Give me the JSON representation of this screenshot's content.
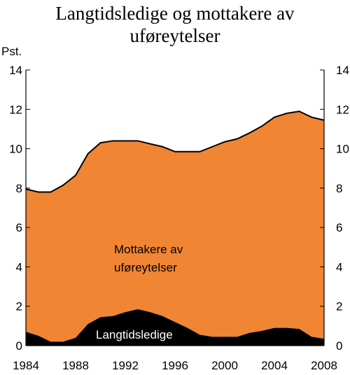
{
  "chart_data": {
    "type": "area",
    "stacked": true,
    "title_lines": [
      "Langtidsledige og mottakere av",
      "uføreytelser"
    ],
    "ylabel": "Pst.",
    "ylim": [
      0,
      14
    ],
    "yticks": [
      0,
      2,
      4,
      6,
      8,
      10,
      12,
      14
    ],
    "xlim": [
      1984,
      2008
    ],
    "xticks": [
      1984,
      1988,
      1992,
      1996,
      2000,
      2004,
      2008
    ],
    "grid": false,
    "x": [
      1984,
      1985,
      1986,
      1987,
      1988,
      1989,
      1990,
      1991,
      1992,
      1993,
      1994,
      1995,
      1996,
      1997,
      1998,
      1999,
      2000,
      2001,
      2002,
      2003,
      2004,
      2005,
      2006,
      2007,
      2008
    ],
    "total": [
      7.95,
      7.8,
      7.8,
      8.15,
      8.65,
      9.75,
      10.3,
      10.4,
      10.4,
      10.4,
      10.25,
      10.1,
      9.85,
      9.85,
      9.85,
      10.1,
      10.35,
      10.5,
      10.8,
      11.15,
      11.6,
      11.8,
      11.9,
      11.6,
      11.45
    ],
    "series": [
      {
        "name": "Langtidsledige",
        "color": "#000000",
        "values": [
          0.7,
          0.5,
          0.2,
          0.2,
          0.4,
          1.1,
          1.45,
          1.5,
          1.7,
          1.85,
          1.7,
          1.5,
          1.2,
          0.9,
          0.55,
          0.45,
          0.45,
          0.45,
          0.65,
          0.75,
          0.9,
          0.9,
          0.85,
          0.45,
          0.35
        ]
      },
      {
        "name": "Mottakere av uføreytelser",
        "label_lines": [
          "Mottakere av",
          "uføreytelser"
        ],
        "color": "#f08533",
        "values": [
          7.25,
          7.3,
          7.6,
          7.95,
          8.25,
          8.65,
          8.85,
          8.9,
          8.7,
          8.55,
          8.55,
          8.6,
          8.65,
          8.95,
          9.3,
          9.65,
          9.9,
          10.05,
          10.15,
          10.4,
          10.7,
          10.9,
          11.05,
          11.15,
          11.1
        ]
      }
    ]
  }
}
